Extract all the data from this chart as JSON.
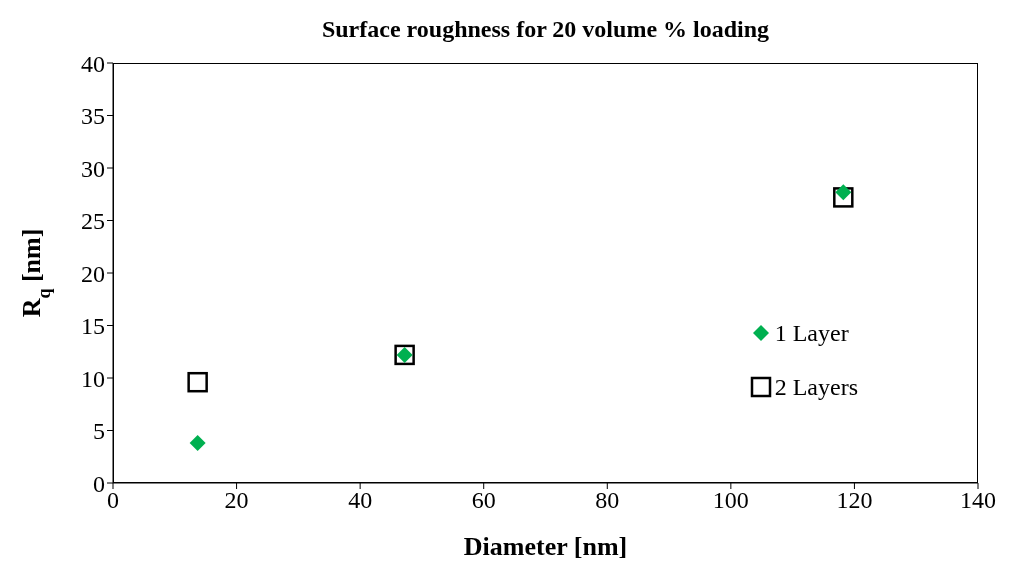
{
  "chart_data": {
    "type": "scatter",
    "title": "Surface roughness for 20 volume % loading",
    "xlabel": "Diameter [nm]",
    "ylabel": "R$_{q}$ [nm]",
    "series": [
      {
        "name": "1 Layer",
        "color": "#00b050",
        "marker": "diamond",
        "x": [
          13.7,
          47.2,
          118.2
        ],
        "values": [
          3.8,
          12.2,
          27.7
        ]
      },
      {
        "name": "2 Layers",
        "color": "#000000",
        "marker": "square",
        "x": [
          13.7,
          47.2,
          118.2
        ],
        "values": [
          9.6,
          12.2,
          27.2
        ]
      }
    ],
    "xlim": [
      0,
      140
    ],
    "xticks": [
      0,
      20,
      40,
      60,
      80,
      100,
      120,
      140
    ],
    "ylim": [
      0,
      40
    ],
    "yticks": [
      0,
      5,
      10,
      15,
      20,
      25,
      30,
      35,
      40
    ],
    "grid": false,
    "legend": "right"
  }
}
